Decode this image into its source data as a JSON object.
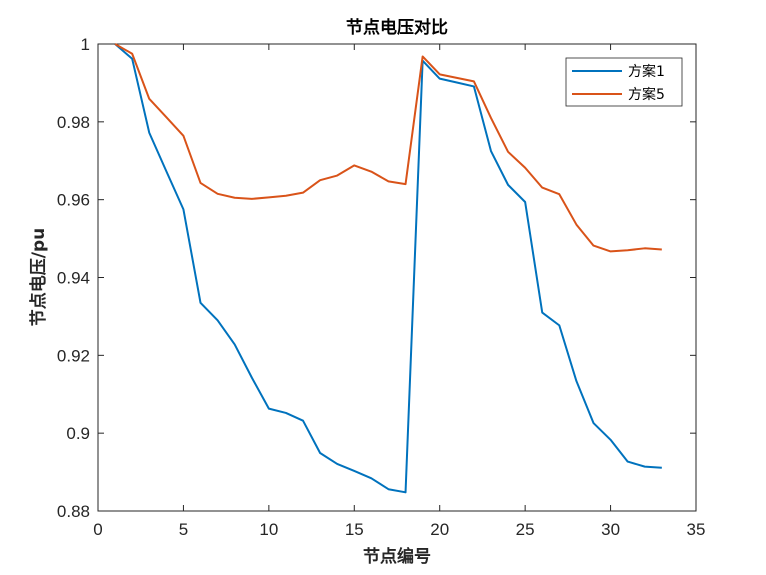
{
  "chart_data": {
    "type": "line",
    "title": "节点电压对比",
    "xlabel": "节点编号",
    "ylabel": "节点电压/pu",
    "xlim": [
      0,
      35
    ],
    "ylim": [
      0.88,
      1.0
    ],
    "xticks": [
      0,
      5,
      10,
      15,
      20,
      25,
      30,
      35
    ],
    "xtick_labels": [
      "0",
      "5",
      "10",
      "15",
      "20",
      "25",
      "30",
      "35"
    ],
    "yticks": [
      0.88,
      0.9,
      0.92,
      0.94,
      0.96,
      0.98,
      1.0
    ],
    "ytick_labels": [
      "0.88",
      "0.9",
      "0.92",
      "0.94",
      "0.96",
      "0.98",
      "1"
    ],
    "grid": false,
    "legend_position": "top-right",
    "x": [
      1,
      2,
      3,
      4,
      5,
      6,
      7,
      8,
      9,
      10,
      11,
      12,
      13,
      14,
      15,
      16,
      17,
      18,
      19,
      20,
      21,
      22,
      23,
      24,
      25,
      26,
      27,
      28,
      29,
      30,
      31,
      32,
      33
    ],
    "series": [
      {
        "name": "方案1",
        "color": "#0072BD",
        "values": [
          1.0,
          0.9962,
          0.9772,
          0.9673,
          0.9575,
          0.9335,
          0.929,
          0.9228,
          0.9143,
          0.9063,
          0.9052,
          0.9032,
          0.8949,
          0.8921,
          0.8903,
          0.8884,
          0.8856,
          0.8848,
          0.9957,
          0.9911,
          0.9901,
          0.9891,
          0.9725,
          0.9638,
          0.9594,
          0.931,
          0.9277,
          0.9134,
          0.9026,
          0.8983,
          0.8927,
          0.8914,
          0.8911
        ]
      },
      {
        "name": "方案5",
        "color": "#D95319",
        "values": [
          1.0,
          0.9975,
          0.9859,
          0.9812,
          0.9764,
          0.9643,
          0.9615,
          0.9605,
          0.9602,
          0.9606,
          0.961,
          0.9618,
          0.965,
          0.9662,
          0.9688,
          0.9672,
          0.9647,
          0.964,
          0.9968,
          0.9922,
          0.9913,
          0.9904,
          0.981,
          0.9723,
          0.9682,
          0.9631,
          0.9614,
          0.9536,
          0.9482,
          0.9467,
          0.947,
          0.9475,
          0.9472
        ]
      }
    ]
  }
}
